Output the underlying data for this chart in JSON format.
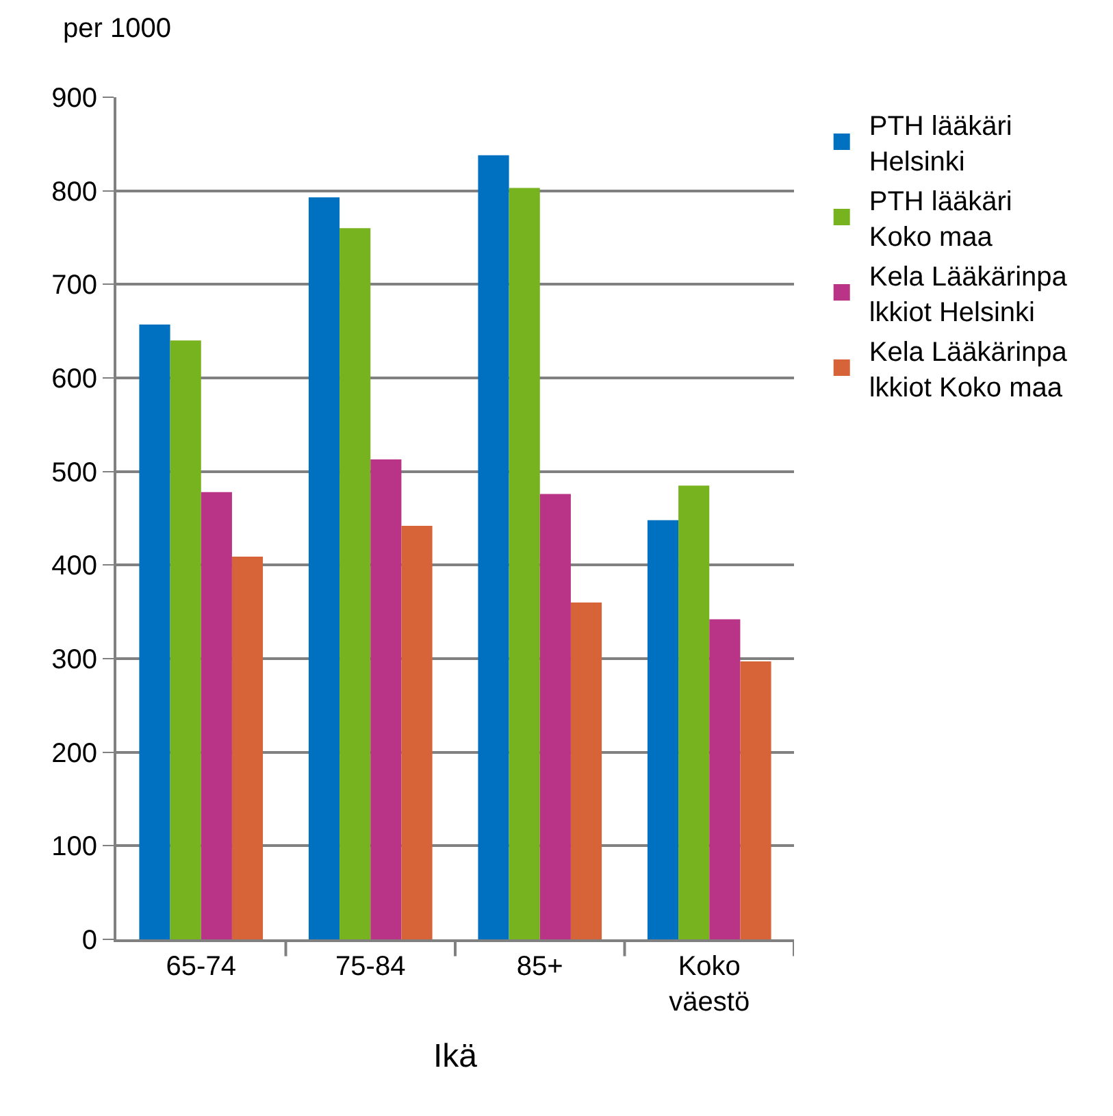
{
  "chart_data": {
    "type": "bar",
    "ylabel": "per 1000",
    "xlabel": "Ikä",
    "categories": [
      "65-74",
      "75-84",
      "85+",
      "Koko väestö"
    ],
    "series": [
      {
        "name": "PTH lääkäri Helsinki",
        "color": "#0070c0",
        "values": [
          657,
          793,
          838,
          448
        ]
      },
      {
        "name": "PTH lääkäri Koko maa",
        "color": "#77b31f",
        "values": [
          640,
          760,
          803,
          485
        ]
      },
      {
        "name": "Kela Lääkärinpalkkiot Helsinki",
        "color": "#b93387",
        "values": [
          478,
          513,
          476,
          342
        ]
      },
      {
        "name": "Kela Lääkärinpalkkiot Koko maa",
        "color": "#d76438",
        "values": [
          409,
          442,
          360,
          297
        ]
      }
    ],
    "ylim": [
      0,
      900
    ],
    "yticks": [
      0,
      100,
      200,
      300,
      400,
      500,
      600,
      700,
      800,
      900
    ],
    "grid": "y",
    "legend": "right"
  }
}
